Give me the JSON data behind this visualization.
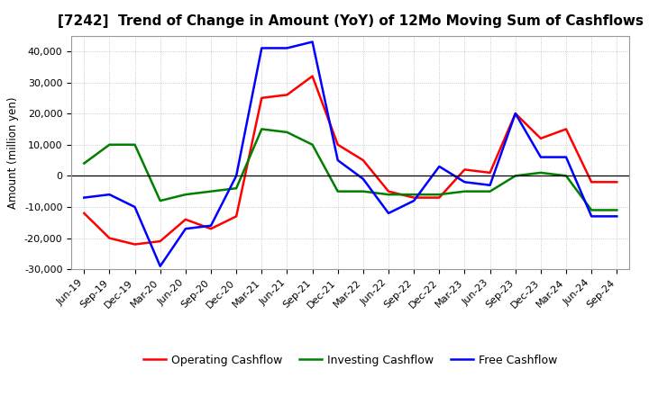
{
  "title": "[7242]  Trend of Change in Amount (YoY) of 12Mo Moving Sum of Cashflows",
  "ylabel": "Amount (million yen)",
  "xlabels": [
    "Jun-19",
    "Sep-19",
    "Dec-19",
    "Mar-20",
    "Jun-20",
    "Sep-20",
    "Dec-20",
    "Mar-21",
    "Jun-21",
    "Sep-21",
    "Dec-21",
    "Mar-22",
    "Jun-22",
    "Sep-22",
    "Dec-22",
    "Mar-23",
    "Jun-23",
    "Sep-23",
    "Dec-23",
    "Mar-24",
    "Jun-24",
    "Sep-24"
  ],
  "operating_cashflow": [
    -12000,
    -20000,
    -22000,
    -21000,
    -14000,
    -17000,
    -13000,
    25000,
    26000,
    32000,
    10000,
    5000,
    -5000,
    -7000,
    -7000,
    2000,
    1000,
    20000,
    12000,
    15000,
    -2000,
    -2000
  ],
  "investing_cashflow": [
    4000,
    10000,
    10000,
    -8000,
    -6000,
    -5000,
    -4000,
    15000,
    14000,
    10000,
    -5000,
    -5000,
    -6000,
    -6000,
    -6000,
    -5000,
    -5000,
    0,
    1000,
    0,
    -11000,
    -11000
  ],
  "free_cashflow": [
    -7000,
    -6000,
    -10000,
    -29000,
    -17000,
    -16000,
    0,
    41000,
    41000,
    43000,
    5000,
    -1000,
    -12000,
    -8000,
    3000,
    -2000,
    -3000,
    20000,
    6000,
    6000,
    -13000,
    -13000
  ],
  "operating_color": "#ff0000",
  "investing_color": "#008000",
  "free_color": "#0000ff",
  "ylim": [
    -30000,
    45000
  ],
  "yticks": [
    -30000,
    -20000,
    -10000,
    0,
    10000,
    20000,
    30000,
    40000
  ],
  "background_color": "#ffffff",
  "grid_color": "#bbbbbb",
  "line_width": 1.8,
  "title_fontsize": 11,
  "label_fontsize": 8.5,
  "tick_fontsize": 8,
  "legend_fontsize": 9
}
